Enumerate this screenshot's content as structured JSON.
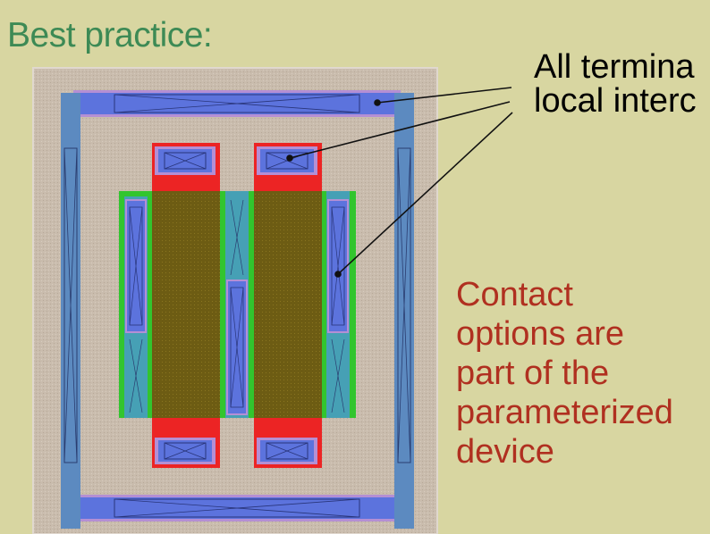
{
  "slide": {
    "title": "Best practice:",
    "callout_lines": [
      "All termina",
      "local interc"
    ],
    "note_lines": [
      "Contact",
      "options are",
      "part of the",
      "parameterized",
      "device"
    ]
  },
  "colors": {
    "background": "#d8d6a1",
    "title": "#3d8a55",
    "note": "#b03020",
    "substrate": "#c7b8a9",
    "metal": "#6b78e0",
    "well": "#6490bf",
    "active": "#33c42f",
    "poly": "#ec2424",
    "gate": "#6b5a12"
  }
}
